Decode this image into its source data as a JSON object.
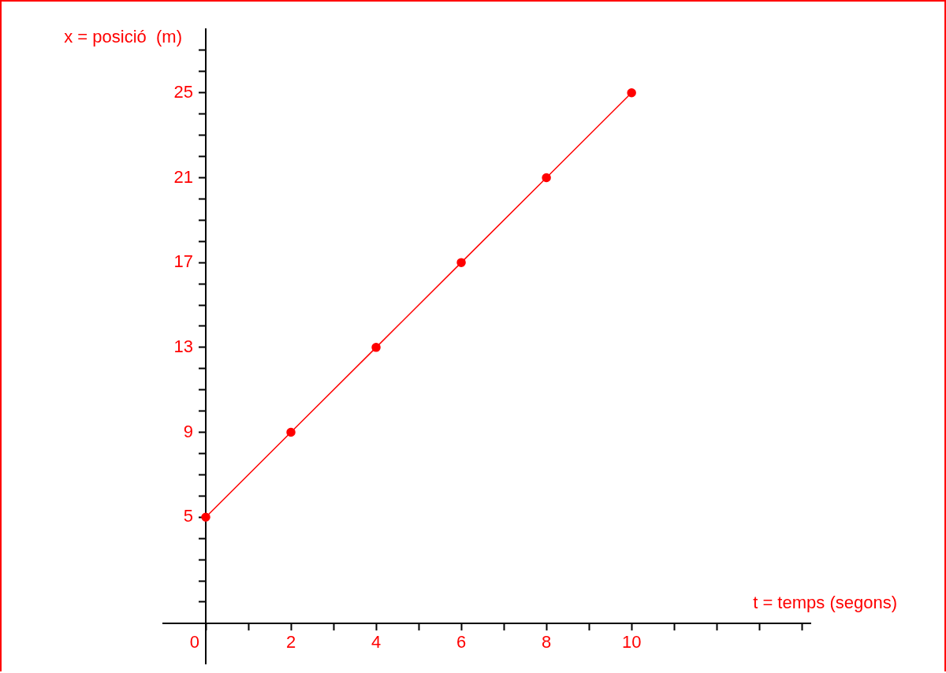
{
  "chart_data": {
    "type": "line",
    "xlabel": "t = temps (segons)",
    "ylabel": "x = posició  (m)",
    "x": [
      0,
      2,
      4,
      6,
      8,
      10
    ],
    "series": [
      {
        "color": "#ff0000",
        "values": [
          5,
          9,
          13,
          17,
          21,
          25
        ]
      }
    ],
    "xlim": [
      -1,
      14.2
    ],
    "ylim": [
      -1.9,
      28
    ],
    "xticks": [
      {
        "value": 0,
        "label": "0"
      },
      {
        "value": 1,
        "label": null
      },
      2,
      {
        "value": 3,
        "label": null
      },
      4,
      {
        "value": 5,
        "label": null
      },
      6,
      {
        "value": 7,
        "label": null
      },
      8,
      {
        "value": 9,
        "label": null
      },
      10,
      {
        "value": 11,
        "label": null
      },
      {
        "value": 12,
        "label": null
      },
      {
        "value": 13,
        "label": null
      },
      {
        "value": 14,
        "label": null
      }
    ],
    "yticks": [
      {
        "value": 1,
        "label": null
      },
      {
        "value": 2,
        "label": null
      },
      {
        "value": 3,
        "label": null
      },
      {
        "value": 4,
        "label": null
      },
      5,
      {
        "value": 6,
        "label": null
      },
      {
        "value": 7,
        "label": null
      },
      {
        "value": 8,
        "label": null
      },
      9,
      {
        "value": 10,
        "label": null
      },
      {
        "value": 11,
        "label": null
      },
      {
        "value": 12,
        "label": null
      },
      13,
      {
        "value": 14,
        "label": null
      },
      {
        "value": 15,
        "label": null
      },
      {
        "value": 16,
        "label": null
      },
      17,
      {
        "value": 18,
        "label": null
      },
      {
        "value": 19,
        "label": null
      },
      {
        "value": 20,
        "label": null
      },
      21,
      {
        "value": 22,
        "label": null
      },
      {
        "value": 23,
        "label": null
      },
      {
        "value": 24,
        "label": null
      },
      25,
      {
        "value": 26,
        "label": null
      },
      {
        "value": 27,
        "label": null
      }
    ],
    "marker": "circle",
    "line_style": "solid",
    "grid": false,
    "legend": false
  }
}
